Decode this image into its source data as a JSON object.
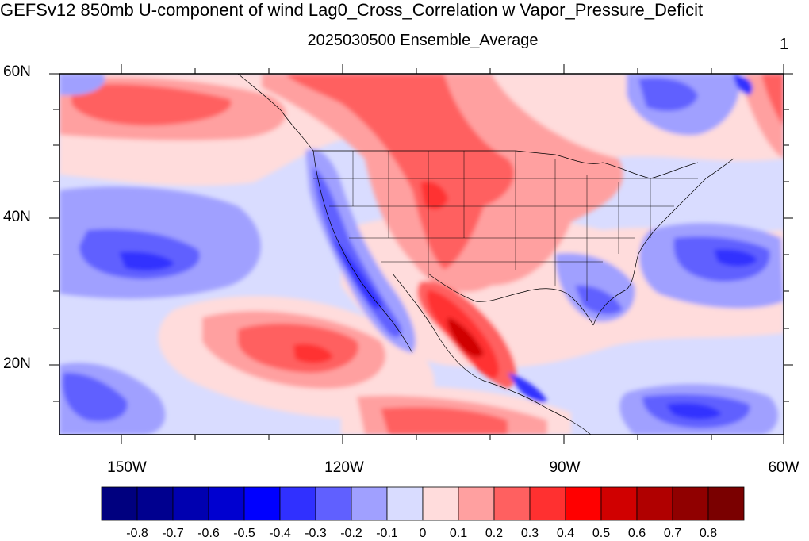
{
  "title": "GEFSv12 850mb U-component of wind Lag0_Cross_Correlation w Vapor_Pressure_Deficit",
  "subtitle": "2025030500 Ensemble_Average",
  "panel_label": "1",
  "lat_labels": [
    "60N",
    "40N",
    "20N"
  ],
  "lon_labels": [
    "150W",
    "120W",
    "90W",
    "60W"
  ],
  "colorbar": {
    "labels": [
      "-0.8",
      "-0.7",
      "-0.6",
      "-0.5",
      "-0.4",
      "-0.3",
      "-0.2",
      "-0.1",
      "0",
      "0.1",
      "0.2",
      "0.3",
      "0.4",
      "0.5",
      "0.6",
      "0.7",
      "0.8"
    ],
    "colors": [
      "#00007f",
      "#00008f",
      "#0000b0",
      "#0000d0",
      "#0000ff",
      "#3030ff",
      "#6060ff",
      "#a0a0ff",
      "#d9dcff",
      "#ffdcdc",
      "#ffa0a0",
      "#ff6060",
      "#ff3030",
      "#ff0000",
      "#d00000",
      "#b00000",
      "#900000",
      "#7a0000"
    ]
  },
  "colors": {
    "background_neutral_blue": "#d9dcff",
    "background_neutral_red": "#ffdcdc"
  }
}
